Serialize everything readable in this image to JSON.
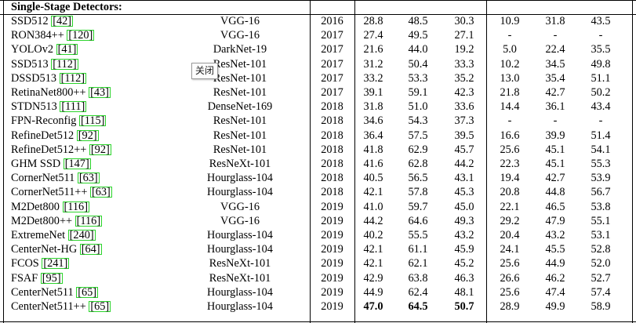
{
  "section_title": "Single-Stage Detectors:",
  "rows": [
    {
      "method": "SSD512",
      "ref": "42",
      "backbone": "VGG-16",
      "year": "2016",
      "m": [
        "28.8",
        "48.5",
        "30.3",
        "10.9",
        "31.8",
        "43.5"
      ]
    },
    {
      "method": "RON384++",
      "ref": "120",
      "backbone": "VGG-16",
      "year": "2017",
      "m": [
        "27.4",
        "49.5",
        "27.1",
        "-",
        "-",
        "-"
      ]
    },
    {
      "method": "YOLOv2",
      "ref": "41",
      "backbone": "DarkNet-19",
      "year": "2017",
      "m": [
        "21.6",
        "44.0",
        "19.2",
        "5.0",
        "22.4",
        "35.5"
      ]
    },
    {
      "method": "SSD513",
      "ref": "112",
      "backbone": "ResNet-101",
      "year": "2017",
      "m": [
        "31.2",
        "50.4",
        "33.3",
        "10.2",
        "34.5",
        "49.8"
      ]
    },
    {
      "method": "DSSD513",
      "ref": "112",
      "backbone": "ResNet-101",
      "year": "2017",
      "m": [
        "33.2",
        "53.3",
        "35.2",
        "13.0",
        "35.4",
        "51.1"
      ]
    },
    {
      "method": "RetinaNet800++",
      "ref": "43",
      "backbone": "ResNet-101",
      "year": "2017",
      "m": [
        "39.1",
        "59.1",
        "42.3",
        "21.8",
        "42.7",
        "50.2"
      ]
    },
    {
      "method": "STDN513",
      "ref": "111",
      "backbone": "DenseNet-169",
      "year": "2018",
      "m": [
        "31.8",
        "51.0",
        "33.6",
        "14.4",
        "36.1",
        "43.4"
      ]
    },
    {
      "method": "FPN-Reconfig",
      "ref": "115",
      "backbone": "ResNet-101",
      "year": "2018",
      "m": [
        "34.6",
        "54.3",
        "37.3",
        "-",
        "-",
        "-"
      ]
    },
    {
      "method": "RefineDet512",
      "ref": "92",
      "backbone": "ResNet-101",
      "year": "2018",
      "m": [
        "36.4",
        "57.5",
        "39.5",
        "16.6",
        "39.9",
        "51.4"
      ]
    },
    {
      "method": "RefineDet512++",
      "ref": "92",
      "backbone": "ResNet-101",
      "year": "2018",
      "m": [
        "41.8",
        "62.9",
        "45.7",
        "25.6",
        "45.1",
        "54.1"
      ]
    },
    {
      "method": "GHM SSD",
      "ref": "147",
      "backbone": "ResNeXt-101",
      "year": "2018",
      "m": [
        "41.6",
        "62.8",
        "44.2",
        "22.3",
        "45.1",
        "55.3"
      ]
    },
    {
      "method": "CornerNet511",
      "ref": "63",
      "backbone": "Hourglass-104",
      "year": "2018",
      "m": [
        "40.5",
        "56.5",
        "43.1",
        "19.4",
        "42.7",
        "53.9"
      ]
    },
    {
      "method": "CornerNet511++",
      "ref": "63",
      "backbone": "Hourglass-104",
      "year": "2018",
      "m": [
        "42.1",
        "57.8",
        "45.3",
        "20.8",
        "44.8",
        "56.7"
      ]
    },
    {
      "method": "M2Det800",
      "ref": "116",
      "backbone": "VGG-16",
      "year": "2019",
      "m": [
        "41.0",
        "59.7",
        "45.0",
        "22.1",
        "46.5",
        "53.8"
      ]
    },
    {
      "method": "M2Det800++",
      "ref": "116",
      "backbone": "VGG-16",
      "year": "2019",
      "m": [
        "44.2",
        "64.6",
        "49.3",
        "29.2",
        "47.9",
        "55.1"
      ]
    },
    {
      "method": "ExtremeNet",
      "ref": "240",
      "backbone": "Hourglass-104",
      "year": "2019",
      "m": [
        "40.2",
        "55.5",
        "43.2",
        "20.4",
        "43.2",
        "53.1"
      ]
    },
    {
      "method": "CenterNet-HG",
      "ref": "64",
      "backbone": "Hourglass-104",
      "year": "2019",
      "m": [
        "42.1",
        "61.1",
        "45.9",
        "24.1",
        "45.5",
        "52.8"
      ]
    },
    {
      "method": "FCOS",
      "ref": "241",
      "backbone": "ResNeXt-101",
      "year": "2019",
      "m": [
        "42.1",
        "62.1",
        "45.2",
        "25.6",
        "44.9",
        "52.0"
      ]
    },
    {
      "method": "FSAF",
      "ref": "95",
      "backbone": "ResNeXt-101",
      "year": "2019",
      "m": [
        "42.9",
        "63.8",
        "46.3",
        "26.6",
        "46.2",
        "52.7"
      ]
    },
    {
      "method": "CenterNet511",
      "ref": "65",
      "backbone": "Hourglass-104",
      "year": "2019",
      "m": [
        "44.9",
        "62.4",
        "48.1",
        "25.6",
        "47.4",
        "57.4"
      ]
    },
    {
      "method": "CenterNet511++",
      "ref": "65",
      "backbone": "Hourglass-104",
      "year": "2019",
      "m": [
        "47.0",
        "64.5",
        "50.7",
        "28.9",
        "49.9",
        "58.9"
      ],
      "bold": [
        0,
        1,
        2
      ]
    }
  ],
  "tooltip": {
    "label": "关闭"
  }
}
